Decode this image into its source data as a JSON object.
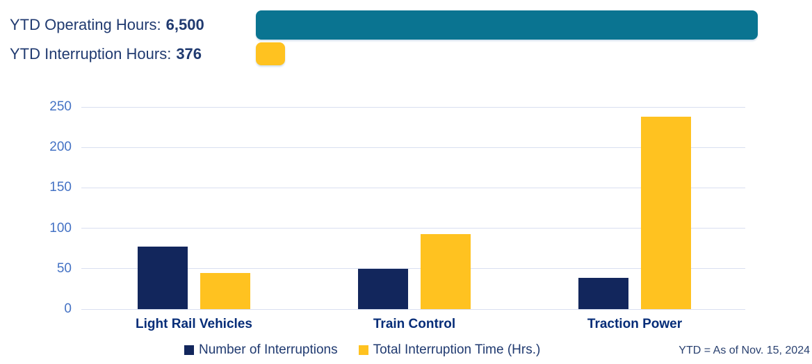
{
  "header": {
    "operating": {
      "label": "YTD Operating Hours:",
      "value": "6,500"
    },
    "interruption": {
      "label": "YTD Interruption Hours:",
      "value": "376"
    }
  },
  "footnote": "YTD = As of Nov. 15, 2024",
  "colors": {
    "teal": "#0a7491",
    "amber": "#ffc220",
    "navy": "#12265c",
    "tick_blue": "#4472c4",
    "text_navy": "#203a70",
    "category_navy": "#062d78",
    "gridline": "#d9dff0"
  },
  "header_bars": {
    "operating": {
      "value": 6500,
      "color": "#0a7491"
    },
    "interruption": {
      "value": 376,
      "color": "#ffc220"
    }
  },
  "chart_data": {
    "type": "bar",
    "title": "",
    "xlabel": "",
    "ylabel": "",
    "categories": [
      "Light Rail Vehicles",
      "Train Control",
      "Traction Power"
    ],
    "series": [
      {
        "name": "Number of Interruptions",
        "color": "#12265c",
        "values": [
          77,
          50,
          39
        ]
      },
      {
        "name": "Total Interruption Time (Hrs.)",
        "color": "#ffc220",
        "values": [
          45,
          93,
          238
        ]
      }
    ],
    "ylim": [
      0,
      250
    ],
    "yticks": [
      0,
      50,
      100,
      150,
      200,
      250
    ],
    "grid": true,
    "legend_position": "bottom"
  }
}
